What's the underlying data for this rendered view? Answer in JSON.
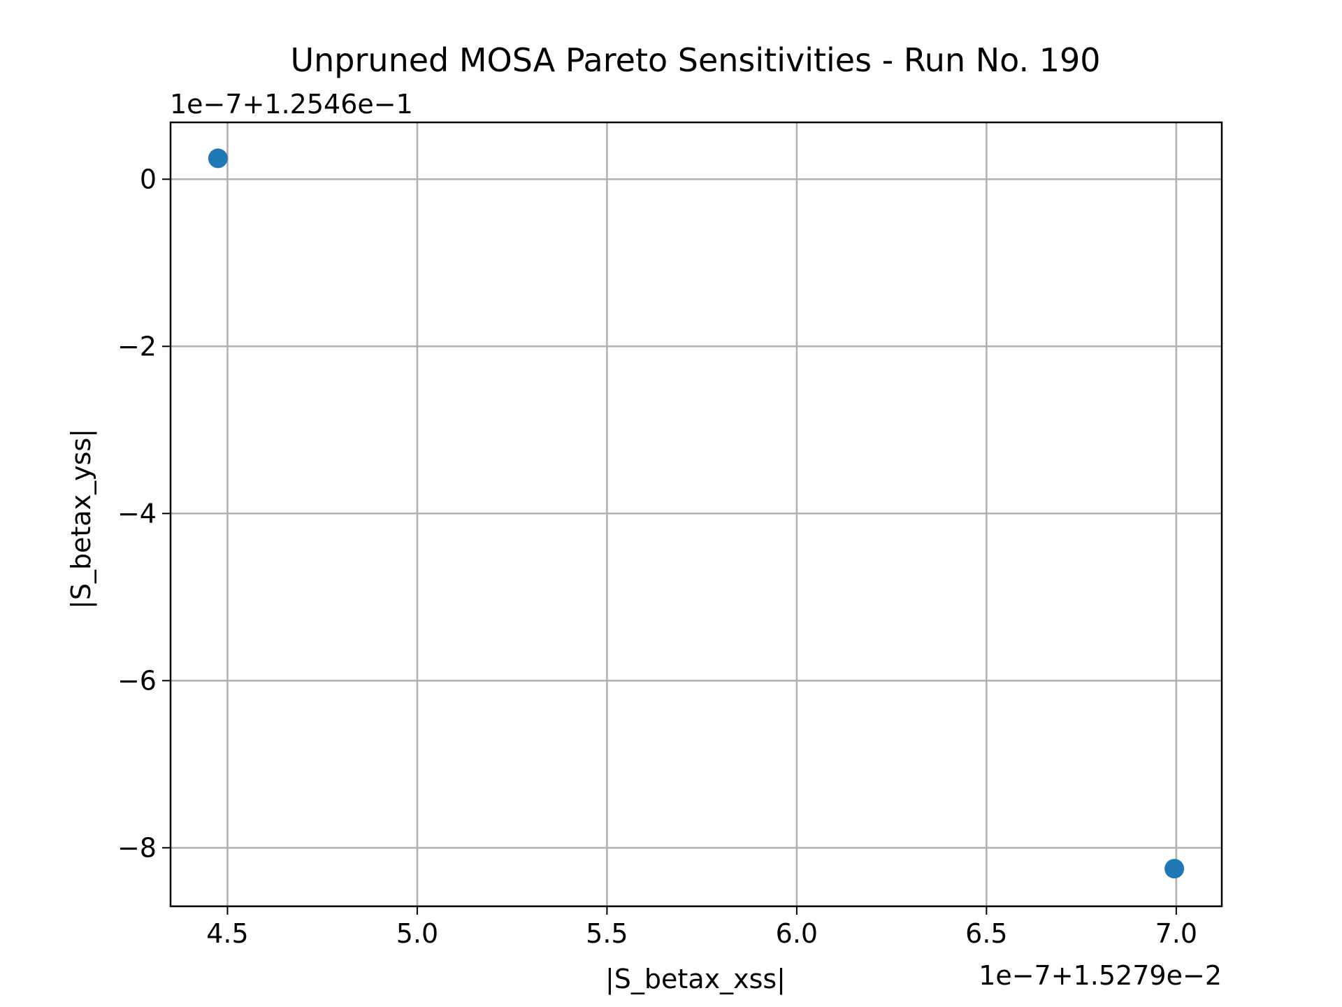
{
  "chart_data": {
    "type": "scatter",
    "title": "Unpruned MOSA Pareto Sensitivities - Run No. 190",
    "xlabel": "|S_betax_xss|",
    "ylabel": "|S_betax_yss|",
    "x_offset_label": "1e−7+1.5279e−2",
    "y_offset_label": "1e−7+1.2546e−1",
    "xlim": [
      4.35,
      7.12
    ],
    "ylim": [
      -8.7,
      0.68
    ],
    "xticks": [
      4.5,
      5.0,
      5.5,
      6.0,
      6.5,
      7.0
    ],
    "xtick_labels": [
      "4.5",
      "5.0",
      "5.5",
      "6.0",
      "6.5",
      "7.0"
    ],
    "yticks": [
      0,
      -2,
      -4,
      -6,
      -8
    ],
    "ytick_labels": [
      "0",
      "−2",
      "−4",
      "−6",
      "−8"
    ],
    "grid": true,
    "series": [
      {
        "color": "#1f77b4",
        "points": [
          {
            "x": 4.475,
            "y": 0.25
          },
          {
            "x": 6.995,
            "y": -8.25
          }
        ]
      }
    ]
  }
}
